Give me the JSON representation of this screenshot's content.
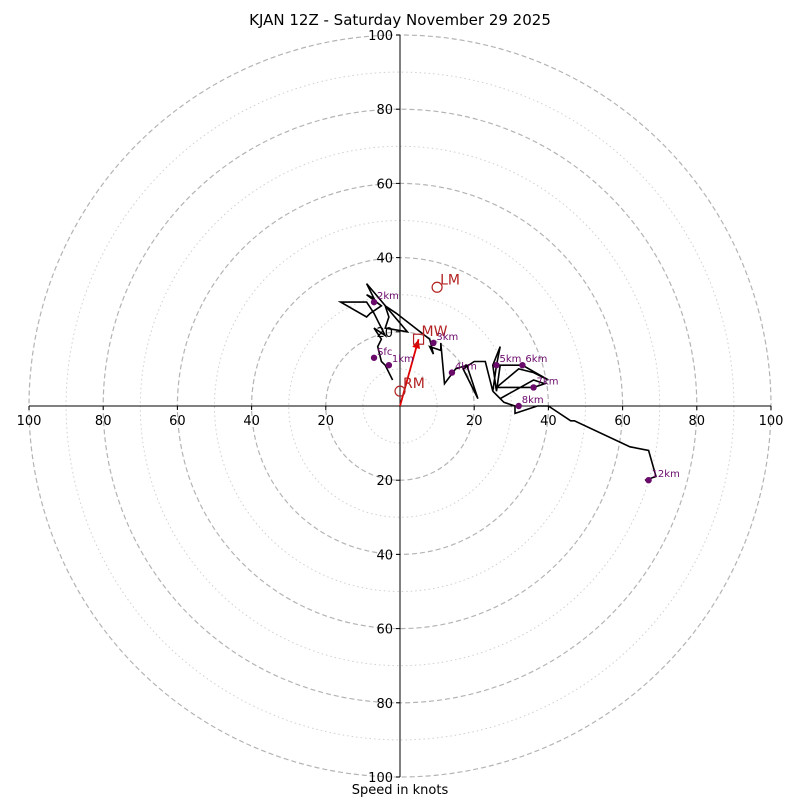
{
  "chart_data": {
    "type": "hodograph",
    "title": "KJAN 12Z - Saturday November 29 2025",
    "xlabel": "Speed in knots",
    "ring_labels": [
      "20",
      "40",
      "60",
      "80",
      "100"
    ],
    "max_speed": 100,
    "ring_step_major": 20,
    "ring_step_minor": 10,
    "x_tick_labels": [
      "100",
      "80",
      "60",
      "40",
      "20",
      "20",
      "40",
      "60",
      "80",
      "100"
    ],
    "y_tick_labels": [
      "100",
      "80",
      "60",
      "40",
      "20",
      "20",
      "40",
      "60",
      "80",
      "100"
    ],
    "wind_trace": [
      [
        -2,
        7
      ],
      [
        -4,
        11
      ],
      [
        -5,
        12
      ],
      [
        -6,
        16
      ],
      [
        -5,
        18
      ],
      [
        -7,
        21
      ],
      [
        -4,
        19
      ],
      [
        -6,
        23
      ],
      [
        -7,
        25
      ],
      [
        -9,
        28
      ],
      [
        -16,
        28
      ],
      [
        -9,
        24
      ],
      [
        -8,
        25
      ],
      [
        -5,
        27
      ],
      [
        -9,
        30
      ],
      [
        -7,
        29
      ],
      [
        -9,
        33
      ],
      [
        2,
        20
      ],
      [
        -4,
        21
      ],
      [
        -3,
        24
      ],
      [
        -4,
        27
      ],
      [
        -1,
        25
      ],
      [
        8,
        18
      ],
      [
        9,
        14
      ],
      [
        8,
        16
      ],
      [
        11,
        15
      ],
      [
        11,
        17
      ],
      [
        12,
        6
      ],
      [
        15,
        10
      ],
      [
        18,
        11
      ],
      [
        21,
        2
      ],
      [
        17,
        10
      ],
      [
        20,
        12
      ],
      [
        23,
        12
      ],
      [
        25,
        4
      ],
      [
        26,
        11
      ],
      [
        27,
        16
      ],
      [
        25,
        11
      ],
      [
        26,
        4
      ],
      [
        27,
        11
      ],
      [
        31,
        11
      ],
      [
        33,
        11
      ],
      [
        40,
        7
      ],
      [
        36,
        9
      ],
      [
        32,
        10
      ],
      [
        26,
        5
      ],
      [
        34,
        5
      ],
      [
        36,
        5
      ],
      [
        39,
        6
      ],
      [
        36,
        7
      ],
      [
        27,
        2
      ],
      [
        25,
        4
      ],
      [
        28,
        1
      ],
      [
        31,
        0
      ],
      [
        31,
        -2
      ],
      [
        37,
        0
      ],
      [
        40,
        0
      ],
      [
        46,
        -4
      ],
      [
        47,
        -4
      ],
      [
        62,
        -11
      ],
      [
        67,
        -12
      ],
      [
        69,
        -19
      ],
      [
        66,
        -20
      ]
    ],
    "height_markers": [
      {
        "label": "Sfc",
        "u": -7,
        "v": 13
      },
      {
        "label": "1km",
        "u": -3,
        "v": 11
      },
      {
        "label": "2km",
        "u": -7,
        "v": 28
      },
      {
        "label": "3km",
        "u": 9,
        "v": 17
      },
      {
        "label": "4km",
        "u": 14,
        "v": 9
      },
      {
        "label": "5km",
        "u": 26,
        "v": 11
      },
      {
        "label": "6km",
        "u": 33,
        "v": 11
      },
      {
        "label": "7km",
        "u": 36,
        "v": 5
      },
      {
        "label": "8km",
        "u": 32,
        "v": 0
      },
      {
        "label": "12km",
        "u": 67,
        "v": -20
      }
    ],
    "motion_points": [
      {
        "label": "LM",
        "u": 10,
        "v": 32,
        "shape": "circle"
      },
      {
        "label": "MW",
        "u": 5,
        "v": 18,
        "shape": "square"
      },
      {
        "label": "RM",
        "u": 0,
        "v": 4,
        "shape": "circle"
      }
    ],
    "shear_vector": {
      "from": [
        0,
        0
      ],
      "to": [
        5,
        18
      ]
    },
    "colors": {
      "trace": "#000000",
      "height_marker": "#6a0a6a",
      "motion": "#b22222",
      "shear_vector": "#e00000",
      "rings": "#b4b4b4"
    }
  }
}
